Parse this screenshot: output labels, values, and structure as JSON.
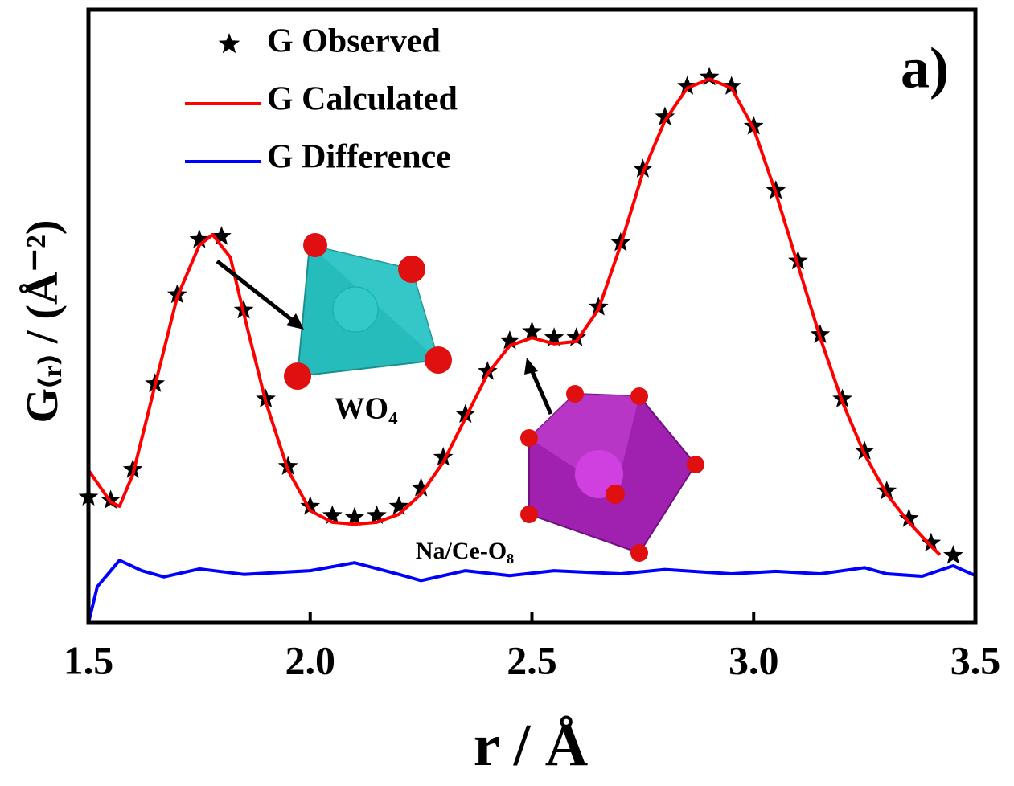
{
  "chart_data": {
    "type": "line",
    "xlabel": "r / Å",
    "ylabel": "G₍ᵣ₎ / (Å⁻²)",
    "annotations": [
      "a)",
      "WO₄",
      "Na/Ce-O₈"
    ],
    "xlim": [
      1.5,
      3.5
    ],
    "ylim": [
      0,
      1
    ],
    "xticks": [
      1.5,
      {
        "value": 2,
        "label": "2.0"
      },
      2.5,
      {
        "value": 3,
        "label": "3.0"
      },
      3.5
    ],
    "series": [
      {
        "name": "G Observed",
        "color": "#000000",
        "marker": "star",
        "x": [
          1.5,
          1.55,
          1.6,
          1.65,
          1.7,
          1.75,
          1.8,
          1.85,
          1.9,
          1.95,
          2.0,
          2.05,
          2.1,
          2.15,
          2.2,
          2.25,
          2.3,
          2.35,
          2.4,
          2.45,
          2.5,
          2.55,
          2.6,
          2.65,
          2.7,
          2.75,
          2.8,
          2.85,
          2.9,
          2.95,
          3.0,
          3.05,
          3.1,
          3.15,
          3.2,
          3.25,
          3.3,
          3.35,
          3.4,
          3.45
        ],
        "values": [
          0.205,
          0.2,
          0.25,
          0.39,
          0.535,
          0.625,
          0.63,
          0.51,
          0.365,
          0.255,
          0.19,
          0.175,
          0.172,
          0.175,
          0.19,
          0.22,
          0.27,
          0.34,
          0.41,
          0.46,
          0.475,
          0.465,
          0.465,
          0.515,
          0.62,
          0.74,
          0.825,
          0.875,
          0.89,
          0.875,
          0.81,
          0.705,
          0.59,
          0.47,
          0.365,
          0.28,
          0.215,
          0.17,
          0.13,
          0.11
        ]
      },
      {
        "name": "G Calculated",
        "color": "#ff0000",
        "x": [
          1.5,
          1.55,
          1.57,
          1.6,
          1.65,
          1.7,
          1.75,
          1.78,
          1.82,
          1.85,
          1.9,
          1.95,
          2.0,
          2.05,
          2.1,
          2.15,
          2.2,
          2.25,
          2.3,
          2.35,
          2.4,
          2.45,
          2.5,
          2.55,
          2.6,
          2.65,
          2.7,
          2.75,
          2.8,
          2.85,
          2.9,
          2.95,
          3.0,
          3.05,
          3.1,
          3.15,
          3.2,
          3.25,
          3.3,
          3.35,
          3.4,
          3.42
        ],
        "values": [
          0.249,
          0.197,
          0.19,
          0.242,
          0.387,
          0.531,
          0.616,
          0.633,
          0.596,
          0.505,
          0.36,
          0.249,
          0.183,
          0.164,
          0.161,
          0.164,
          0.177,
          0.21,
          0.262,
          0.334,
          0.406,
          0.452,
          0.465,
          0.455,
          0.459,
          0.511,
          0.616,
          0.734,
          0.819,
          0.872,
          0.887,
          0.872,
          0.806,
          0.701,
          0.583,
          0.465,
          0.36,
          0.275,
          0.21,
          0.164,
          0.125,
          0.111
        ]
      },
      {
        "name": "G Difference",
        "color": "#0000ff",
        "x": [
          1.5,
          1.52,
          1.57,
          1.62,
          1.67,
          1.75,
          1.85,
          2.0,
          2.1,
          2.2,
          2.25,
          2.35,
          2.45,
          2.55,
          2.7,
          2.8,
          2.95,
          3.05,
          3.15,
          3.25,
          3.3,
          3.38,
          3.45,
          3.5
        ],
        "values": [
          0.0,
          0.059,
          0.102,
          0.085,
          0.075,
          0.088,
          0.079,
          0.085,
          0.098,
          0.079,
          0.069,
          0.085,
          0.077,
          0.085,
          0.08,
          0.087,
          0.08,
          0.084,
          0.08,
          0.09,
          0.08,
          0.076,
          0.093,
          0.077
        ]
      }
    ],
    "legend": "upper left"
  }
}
